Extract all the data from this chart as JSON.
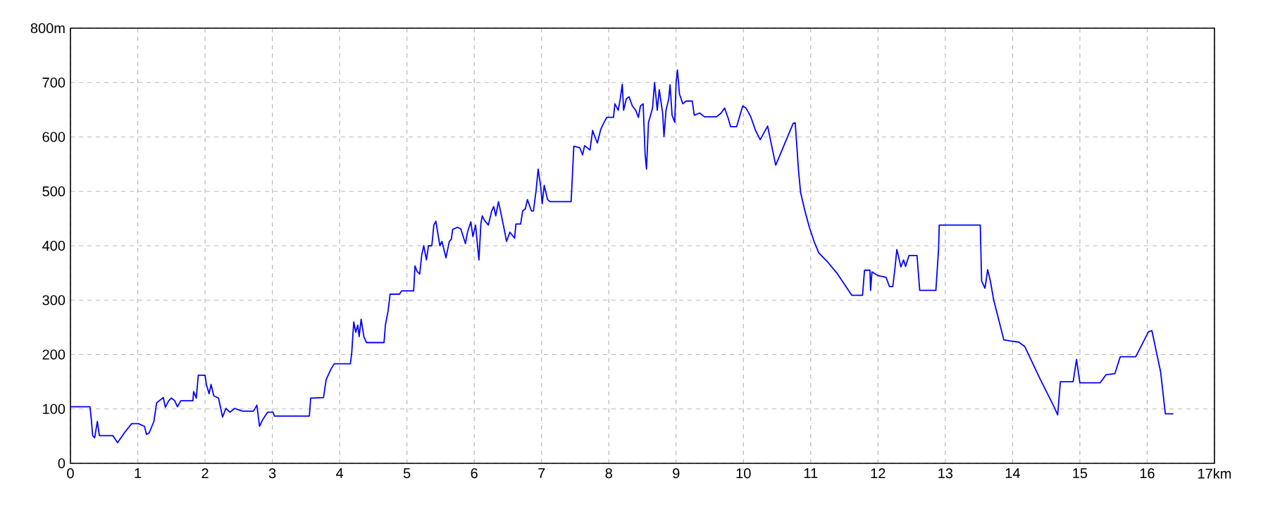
{
  "chart_data": {
    "type": "line",
    "grid": true,
    "marker": "none",
    "line_style": "solid",
    "xlim": [
      0,
      17
    ],
    "ylim": [
      0,
      800
    ],
    "xticks": [
      0,
      1,
      2,
      3,
      4,
      5,
      6,
      7,
      8,
      9,
      10,
      11,
      12,
      13,
      14,
      15,
      16,
      {
        "value": 17,
        "label": "17km"
      }
    ],
    "yticks": [
      0,
      100,
      200,
      300,
      400,
      500,
      600,
      700,
      {
        "value": 800,
        "label": "800m"
      }
    ],
    "series": [
      {
        "color": "#0000ff",
        "x": [
          0,
          0.29,
          0.31,
          0.33,
          0.36,
          0.4,
          0.43,
          0.63,
          0.7,
          0.8,
          0.91,
          1.01,
          1.1,
          1.13,
          1.17,
          1.24,
          1.28,
          1.32,
          1.38,
          1.41,
          1.46,
          1.5,
          1.55,
          1.59,
          1.64,
          1.82,
          1.83,
          1.87,
          1.9,
          2.0,
          2.02,
          2.06,
          2.09,
          2.13,
          2.2,
          2.23,
          2.26,
          2.31,
          2.37,
          2.44,
          2.51,
          2.56,
          2.72,
          2.77,
          2.81,
          2.86,
          2.93,
          3.01,
          3.03,
          3.55,
          3.57,
          3.76,
          3.8,
          3.87,
          3.92,
          4.16,
          4.18,
          4.21,
          4.24,
          4.27,
          4.29,
          4.32,
          4.36,
          4.4,
          4.66,
          4.68,
          4.72,
          4.75,
          4.89,
          4.92,
          5.1,
          5.12,
          5.15,
          5.19,
          5.22,
          5.25,
          5.29,
          5.32,
          5.37,
          5.4,
          5.43,
          5.49,
          5.52,
          5.58,
          5.63,
          5.66,
          5.68,
          5.75,
          5.8,
          5.87,
          5.9,
          5.95,
          5.98,
          6.02,
          6.07,
          6.1,
          6.12,
          6.15,
          6.21,
          6.26,
          6.29,
          6.32,
          6.36,
          6.39,
          6.44,
          6.48,
          6.53,
          6.6,
          6.62,
          6.69,
          6.72,
          6.76,
          6.79,
          6.85,
          6.88,
          6.92,
          6.95,
          6.99,
          7.01,
          7.04,
          7.09,
          7.13,
          7.44,
          7.48,
          7.57,
          7.61,
          7.64,
          7.72,
          7.76,
          7.79,
          7.83,
          7.88,
          7.93,
          7.97,
          8.07,
          8.09,
          8.14,
          8.17,
          8.2,
          8.22,
          8.26,
          8.3,
          8.35,
          8.4,
          8.44,
          8.47,
          8.51,
          8.54,
          8.56,
          8.59,
          8.63,
          8.65,
          8.68,
          8.72,
          8.75,
          8.8,
          8.82,
          8.85,
          8.89,
          8.91,
          8.94,
          8.98,
          9.0,
          9.02,
          9.05,
          9.1,
          9.15,
          9.24,
          9.27,
          9.35,
          9.42,
          9.6,
          9.67,
          9.72,
          9.77,
          9.81,
          9.9,
          9.95,
          9.99,
          10.04,
          10.11,
          10.18,
          10.25,
          10.36,
          10.48,
          10.74,
          10.77,
          10.82,
          10.85,
          10.91,
          10.98,
          11.05,
          11.12,
          11.26,
          11.4,
          11.54,
          11.61,
          11.77,
          11.8,
          11.88,
          11.89,
          11.91,
          12.0,
          12.12,
          12.17,
          12.22,
          12.25,
          12.28,
          12.31,
          12.34,
          12.38,
          12.41,
          12.46,
          12.58,
          12.62,
          12.86,
          12.9,
          12.91,
          13.52,
          13.54,
          13.59,
          13.63,
          13.67,
          13.72,
          13.79,
          13.87,
          13.96,
          14.09,
          14.18,
          14.41,
          14.62,
          14.67,
          14.71,
          14.9,
          14.95,
          15.0,
          15.3,
          15.39,
          15.52,
          15.6,
          15.83,
          16.02,
          16.07,
          16.2,
          16.27,
          16.39
        ],
        "values": [
          104,
          104,
          81,
          51,
          47,
          77,
          51,
          51,
          38,
          56,
          73,
          73,
          68,
          53,
          56,
          77,
          111,
          115,
          121,
          103,
          115,
          120,
          115,
          104,
          115,
          115,
          132,
          120,
          162,
          162,
          145,
          128,
          145,
          124,
          120,
          103,
          85,
          101,
          94,
          101,
          98,
          96,
          96,
          107,
          68,
          81,
          94,
          94,
          87,
          87,
          120,
          121,
          154,
          173,
          183,
          183,
          203,
          260,
          241,
          254,
          233,
          265,
          233,
          222,
          222,
          254,
          280,
          311,
          311,
          317,
          317,
          363,
          353,
          348,
          383,
          400,
          374,
          400,
          400,
          438,
          445,
          400,
          408,
          378,
          408,
          412,
          430,
          434,
          431,
          404,
          425,
          444,
          417,
          438,
          374,
          442,
          455,
          447,
          438,
          464,
          472,
          455,
          481,
          464,
          434,
          408,
          425,
          414,
          440,
          440,
          464,
          468,
          485,
          464,
          464,
          502,
          541,
          507,
          477,
          511,
          485,
          481,
          481,
          583,
          580,
          567,
          584,
          576,
          612,
          601,
          589,
          614,
          627,
          636,
          636,
          661,
          649,
          670,
          697,
          649,
          670,
          674,
          657,
          649,
          636,
          657,
          661,
          567,
          541,
          627,
          644,
          653,
          700,
          649,
          687,
          644,
          601,
          649,
          670,
          696,
          640,
          627,
          700,
          723,
          679,
          661,
          666,
          666,
          640,
          644,
          637,
          637,
          644,
          653,
          636,
          619,
          619,
          640,
          657,
          653,
          637,
          612,
          595,
          620,
          548,
          625,
          626,
          537,
          498,
          466,
          434,
          408,
          387,
          369,
          348,
          322,
          309,
          309,
          355,
          355,
          318,
          352,
          345,
          342,
          325,
          325,
          356,
          393,
          378,
          361,
          374,
          362,
          382,
          382,
          318,
          318,
          393,
          438,
          438,
          335,
          322,
          356,
          335,
          300,
          266,
          227,
          225,
          223,
          215,
          155,
          103,
          89,
          150,
          150,
          191,
          148,
          148,
          163,
          165,
          196,
          196,
          242,
          244,
          168,
          91,
          91
        ]
      }
    ]
  }
}
